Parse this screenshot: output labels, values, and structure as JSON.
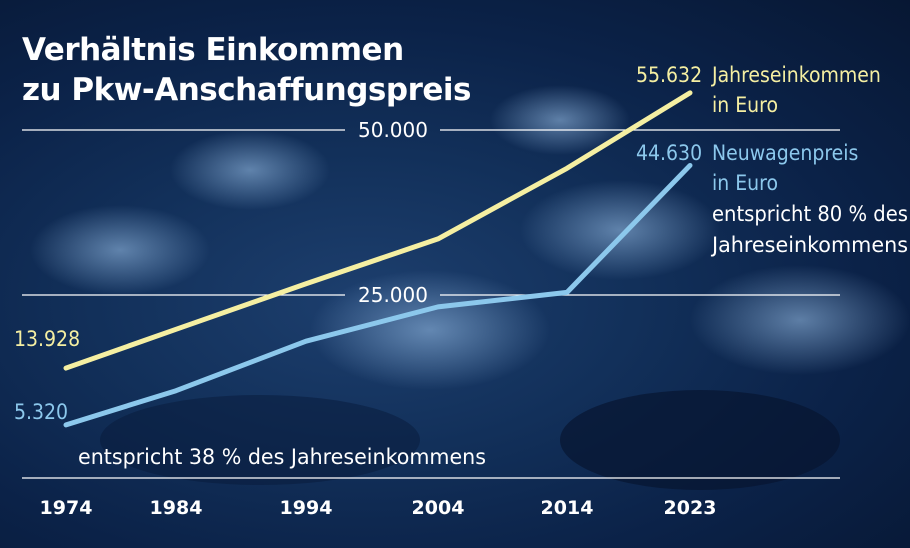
{
  "chart_data": {
    "type": "line",
    "title_lines": [
      "Verhältnis Einkommen",
      "zu Pkw-Anschaffungspreis"
    ],
    "x": [
      "1974",
      "1984",
      "1994",
      "2004",
      "2014",
      "2023"
    ],
    "y_ticks": [
      {
        "value": 25000,
        "label": "25.000"
      },
      {
        "value": 50000,
        "label": "50.000"
      }
    ],
    "grid": true,
    "series": [
      {
        "name": "Jahreseinkommen in Euro",
        "name_lines": [
          "Jahreseinkommen",
          "in Euro"
        ],
        "values": [
          13928,
          19800,
          26700,
          33500,
          44200,
          55632
        ],
        "start_label": "13.928",
        "end_label": "55.632",
        "color": "#f5efa2"
      },
      {
        "name": "Neuwagenpreis in Euro",
        "name_lines": [
          "Neuwagenpreis",
          "in Euro"
        ],
        "values": [
          5320,
          10500,
          18000,
          23200,
          25400,
          44630
        ],
        "start_label": "5.320",
        "end_label": "44.630",
        "color": "#8cc8ec"
      }
    ],
    "annotations": {
      "start": "entspricht 38 % des Jahreseinkommens",
      "end_lines": [
        "entspricht 80 % des",
        "Jahreseinkommens"
      ]
    }
  },
  "colors": {
    "background": "#0f2a52",
    "text": "#ffffff",
    "grid": "#ffffff"
  }
}
